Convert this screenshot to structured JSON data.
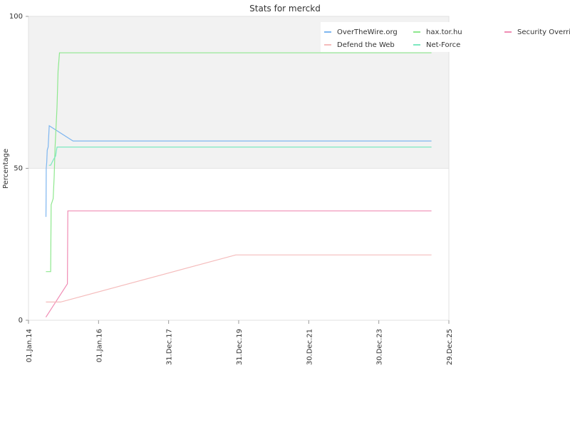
{
  "chart_data": {
    "type": "line",
    "title": "Stats for merckd",
    "ylabel": "Percentage",
    "xlabel": "",
    "ylim": [
      0,
      100
    ],
    "y_ticks": [
      0,
      50,
      100
    ],
    "xlim": [
      "2014-01-01",
      "2025-12-29"
    ],
    "x_ticks": [
      {
        "date": "2014-01-01",
        "label": "01.Jan.14"
      },
      {
        "date": "2016-01-01",
        "label": "01.Jan.16"
      },
      {
        "date": "2017-12-31",
        "label": "31.Dec.17"
      },
      {
        "date": "2019-12-31",
        "label": "31.Dec.19"
      },
      {
        "date": "2021-12-30",
        "label": "30.Dec.21"
      },
      {
        "date": "2023-12-30",
        "label": "30.Dec.23"
      },
      {
        "date": "2025-12-29",
        "label": "29.Dec.25"
      }
    ],
    "shaded_band": [
      50,
      100
    ],
    "legend_position": "top-right",
    "series": [
      {
        "name": "OverTheWire.org",
        "color": "#7eb6f0",
        "points": [
          [
            "2014-07-02",
            34
          ],
          [
            "2014-07-03",
            40
          ],
          [
            "2014-07-05",
            50
          ],
          [
            "2014-07-10",
            52
          ],
          [
            "2014-07-15",
            56
          ],
          [
            "2014-07-25",
            57
          ],
          [
            "2014-08-05",
            64
          ],
          [
            "2015-04-10",
            59
          ],
          [
            "2025-07-01",
            59
          ]
        ]
      },
      {
        "name": "hax.tor.hu",
        "color": "#8ee88e",
        "points": [
          [
            "2014-07-01",
            16
          ],
          [
            "2014-08-20",
            16
          ],
          [
            "2014-08-25",
            38
          ],
          [
            "2014-09-15",
            40
          ],
          [
            "2014-09-25",
            47
          ],
          [
            "2014-10-05",
            57
          ],
          [
            "2014-10-25",
            70
          ],
          [
            "2014-11-05",
            82
          ],
          [
            "2014-11-20",
            88
          ],
          [
            "2025-07-01",
            88
          ]
        ]
      },
      {
        "name": "Security Override",
        "color": "#f08cb4",
        "points": [
          [
            "2014-07-01",
            1
          ],
          [
            "2015-02-10",
            12
          ],
          [
            "2015-02-15",
            36
          ],
          [
            "2025-07-01",
            36
          ]
        ]
      },
      {
        "name": "Defend the Web",
        "color": "#f5bcbc",
        "points": [
          [
            "2014-07-01",
            6
          ],
          [
            "2014-12-01",
            6
          ],
          [
            "2019-12-01",
            21.5
          ],
          [
            "2025-07-01",
            21.5
          ]
        ]
      },
      {
        "name": "Net-Force",
        "color": "#7de8c0",
        "points": [
          [
            "2014-08-01",
            51
          ],
          [
            "2014-08-20",
            51
          ],
          [
            "2014-09-20",
            53
          ],
          [
            "2014-10-10",
            54
          ],
          [
            "2014-10-25",
            57
          ],
          [
            "2025-07-01",
            57
          ]
        ]
      }
    ]
  }
}
